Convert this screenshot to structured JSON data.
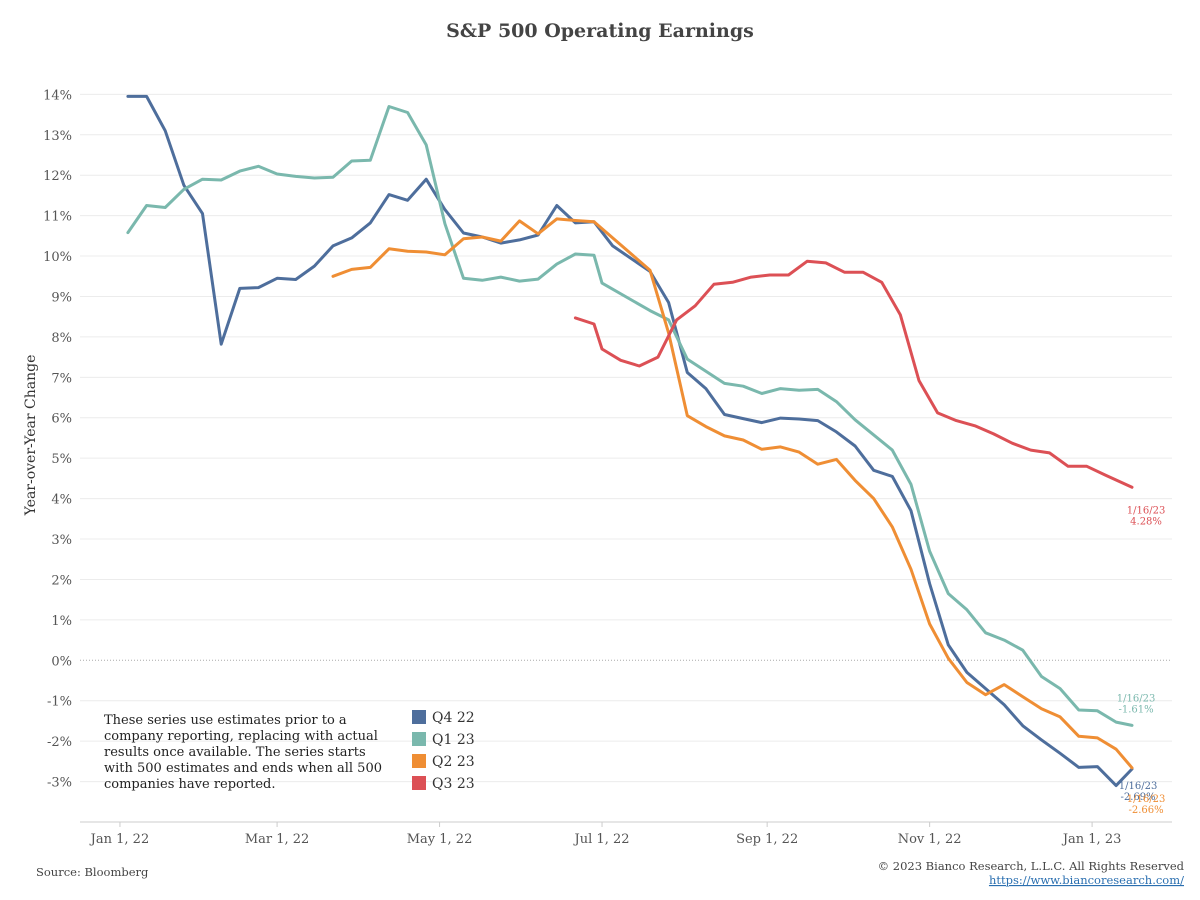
{
  "chart_data": {
    "type": "line",
    "title": "S&P 500 Operating Earnings",
    "ylabel": "Year-over-Year Change",
    "xlabel": "",
    "ylim": [
      -4,
      14.8
    ],
    "xlim": [
      "2021-12-17",
      "2023-01-31"
    ],
    "y_ticks": [
      "-3%",
      "-2%",
      "-1%",
      "0%",
      "1%",
      "2%",
      "3%",
      "4%",
      "5%",
      "6%",
      "7%",
      "8%",
      "9%",
      "10%",
      "11%",
      "12%",
      "13%",
      "14%"
    ],
    "y_tick_values": [
      -3,
      -2,
      -1,
      0,
      1,
      2,
      3,
      4,
      5,
      6,
      7,
      8,
      9,
      10,
      11,
      12,
      13,
      14
    ],
    "x_ticks": [
      {
        "date": "2022-01-01",
        "label": "Jan 1, 22"
      },
      {
        "date": "2022-03-01",
        "label": "Mar 1, 22"
      },
      {
        "date": "2022-05-01",
        "label": "May 1, 22"
      },
      {
        "date": "2022-07-01",
        "label": "Jul 1, 22"
      },
      {
        "date": "2022-09-01",
        "label": "Sep 1, 22"
      },
      {
        "date": "2022-11-01",
        "label": "Nov 1, 22"
      },
      {
        "date": "2023-01-01",
        "label": "Jan 1, 23"
      }
    ],
    "grid": true,
    "legend_position": "bottom-left",
    "series": [
      {
        "name": "Q4 22",
        "color": "#4e6e9c",
        "end_label": [
          "1/16/23",
          "-2.69%"
        ],
        "points": [
          [
            "2022-01-04",
            13.95
          ],
          [
            "2022-01-11",
            13.95
          ],
          [
            "2022-01-18",
            13.1
          ],
          [
            "2022-01-25",
            11.75
          ],
          [
            "2022-02-01",
            11.05
          ],
          [
            "2022-02-08",
            7.82
          ],
          [
            "2022-02-15",
            9.2
          ],
          [
            "2022-02-22",
            9.22
          ],
          [
            "2022-03-01",
            9.45
          ],
          [
            "2022-03-08",
            9.42
          ],
          [
            "2022-03-15",
            9.75
          ],
          [
            "2022-03-22",
            10.25
          ],
          [
            "2022-03-29",
            10.45
          ],
          [
            "2022-04-05",
            10.82
          ],
          [
            "2022-04-12",
            11.52
          ],
          [
            "2022-04-19",
            11.38
          ],
          [
            "2022-04-26",
            11.9
          ],
          [
            "2022-05-03",
            11.15
          ],
          [
            "2022-05-10",
            10.57
          ],
          [
            "2022-05-17",
            10.47
          ],
          [
            "2022-05-24",
            10.32
          ],
          [
            "2022-05-31",
            10.4
          ],
          [
            "2022-06-07",
            10.52
          ],
          [
            "2022-06-14",
            11.25
          ],
          [
            "2022-06-21",
            10.82
          ],
          [
            "2022-06-28",
            10.85
          ],
          [
            "2022-07-05",
            10.25
          ],
          [
            "2022-07-19",
            9.62
          ],
          [
            "2022-07-26",
            8.85
          ],
          [
            "2022-08-02",
            7.12
          ],
          [
            "2022-08-09",
            6.72
          ],
          [
            "2022-08-16",
            6.08
          ],
          [
            "2022-08-23",
            5.98
          ],
          [
            "2022-08-30",
            5.88
          ],
          [
            "2022-09-06",
            5.99
          ],
          [
            "2022-09-13",
            5.97
          ],
          [
            "2022-09-20",
            5.93
          ],
          [
            "2022-09-27",
            5.65
          ],
          [
            "2022-10-04",
            5.3
          ],
          [
            "2022-10-11",
            4.7
          ],
          [
            "2022-10-18",
            4.55
          ],
          [
            "2022-10-25",
            3.7
          ],
          [
            "2022-11-01",
            1.9
          ],
          [
            "2022-11-08",
            0.38
          ],
          [
            "2022-11-15",
            -0.3
          ],
          [
            "2022-11-22",
            -0.7
          ],
          [
            "2022-11-29",
            -1.1
          ],
          [
            "2022-12-06",
            -1.62
          ],
          [
            "2022-12-13",
            -1.97
          ],
          [
            "2022-12-20",
            -2.3
          ],
          [
            "2022-12-27",
            -2.65
          ],
          [
            "2023-01-03",
            -2.63
          ],
          [
            "2023-01-10",
            -3.1
          ],
          [
            "2023-01-16",
            -2.69
          ]
        ]
      },
      {
        "name": "Q1 23",
        "color": "#7ab8ad",
        "end_label": [
          "1/16/23",
          "-1.61%"
        ],
        "points": [
          [
            "2022-01-04",
            10.58
          ],
          [
            "2022-01-11",
            11.25
          ],
          [
            "2022-01-18",
            11.2
          ],
          [
            "2022-01-25",
            11.65
          ],
          [
            "2022-02-01",
            11.9
          ],
          [
            "2022-02-08",
            11.88
          ],
          [
            "2022-02-15",
            12.1
          ],
          [
            "2022-02-22",
            12.22
          ],
          [
            "2022-03-01",
            12.03
          ],
          [
            "2022-03-08",
            11.97
          ],
          [
            "2022-03-15",
            11.93
          ],
          [
            "2022-03-22",
            11.95
          ],
          [
            "2022-03-29",
            12.35
          ],
          [
            "2022-04-05",
            12.37
          ],
          [
            "2022-04-12",
            13.7
          ],
          [
            "2022-04-19",
            13.55
          ],
          [
            "2022-04-26",
            12.75
          ],
          [
            "2022-05-03",
            10.8
          ],
          [
            "2022-05-10",
            9.45
          ],
          [
            "2022-05-17",
            9.4
          ],
          [
            "2022-05-24",
            9.48
          ],
          [
            "2022-05-31",
            9.38
          ],
          [
            "2022-06-07",
            9.43
          ],
          [
            "2022-06-14",
            9.8
          ],
          [
            "2022-06-21",
            10.05
          ],
          [
            "2022-06-28",
            10.02
          ],
          [
            "2022-07-01",
            9.33
          ],
          [
            "2022-07-19",
            8.65
          ],
          [
            "2022-07-26",
            8.42
          ],
          [
            "2022-08-02",
            7.45
          ],
          [
            "2022-08-09",
            7.15
          ],
          [
            "2022-08-16",
            6.85
          ],
          [
            "2022-08-23",
            6.78
          ],
          [
            "2022-08-30",
            6.6
          ],
          [
            "2022-09-06",
            6.72
          ],
          [
            "2022-09-13",
            6.68
          ],
          [
            "2022-09-20",
            6.7
          ],
          [
            "2022-09-27",
            6.4
          ],
          [
            "2022-10-04",
            5.95
          ],
          [
            "2022-10-18",
            5.2
          ],
          [
            "2022-10-25",
            4.35
          ],
          [
            "2022-11-01",
            2.7
          ],
          [
            "2022-11-08",
            1.65
          ],
          [
            "2022-11-15",
            1.25
          ],
          [
            "2022-11-22",
            0.68
          ],
          [
            "2022-11-29",
            0.5
          ],
          [
            "2022-12-06",
            0.25
          ],
          [
            "2022-12-13",
            -0.4
          ],
          [
            "2022-12-20",
            -0.7
          ],
          [
            "2022-12-27",
            -1.23
          ],
          [
            "2023-01-03",
            -1.25
          ],
          [
            "2023-01-10",
            -1.53
          ],
          [
            "2023-01-16",
            -1.61
          ]
        ]
      },
      {
        "name": "Q2 23",
        "color": "#ef8e34",
        "end_label": [
          "1/16/23",
          "-2.66%"
        ],
        "points": [
          [
            "2022-03-22",
            9.5
          ],
          [
            "2022-03-29",
            9.67
          ],
          [
            "2022-04-05",
            9.72
          ],
          [
            "2022-04-12",
            10.18
          ],
          [
            "2022-04-19",
            10.12
          ],
          [
            "2022-04-26",
            10.1
          ],
          [
            "2022-05-03",
            10.03
          ],
          [
            "2022-05-10",
            10.43
          ],
          [
            "2022-05-17",
            10.47
          ],
          [
            "2022-05-24",
            10.37
          ],
          [
            "2022-05-31",
            10.87
          ],
          [
            "2022-06-07",
            10.55
          ],
          [
            "2022-06-14",
            10.92
          ],
          [
            "2022-06-21",
            10.88
          ],
          [
            "2022-06-28",
            10.85
          ],
          [
            "2022-07-19",
            9.65
          ],
          [
            "2022-07-26",
            8.1
          ],
          [
            "2022-08-02",
            6.05
          ],
          [
            "2022-08-09",
            5.78
          ],
          [
            "2022-08-16",
            5.55
          ],
          [
            "2022-08-23",
            5.45
          ],
          [
            "2022-08-30",
            5.22
          ],
          [
            "2022-09-06",
            5.28
          ],
          [
            "2022-09-13",
            5.15
          ],
          [
            "2022-09-20",
            4.85
          ],
          [
            "2022-09-27",
            4.97
          ],
          [
            "2022-10-04",
            4.45
          ],
          [
            "2022-10-11",
            4.0
          ],
          [
            "2022-10-18",
            3.3
          ],
          [
            "2022-10-25",
            2.25
          ],
          [
            "2022-11-01",
            0.9
          ],
          [
            "2022-11-08",
            0.05
          ],
          [
            "2022-11-15",
            -0.55
          ],
          [
            "2022-11-22",
            -0.85
          ],
          [
            "2022-11-29",
            -0.6
          ],
          [
            "2022-12-06",
            -0.9
          ],
          [
            "2022-12-13",
            -1.2
          ],
          [
            "2022-12-20",
            -1.4
          ],
          [
            "2022-12-27",
            -1.88
          ],
          [
            "2023-01-03",
            -1.92
          ],
          [
            "2023-01-10",
            -2.2
          ],
          [
            "2023-01-16",
            -2.66
          ]
        ]
      },
      {
        "name": "Q3 23",
        "color": "#dc5055",
        "end_label": [
          "1/16/23",
          "4.28%"
        ],
        "points": [
          [
            "2022-06-21",
            8.47
          ],
          [
            "2022-06-28",
            8.32
          ],
          [
            "2022-07-01",
            7.7
          ],
          [
            "2022-07-08",
            7.42
          ],
          [
            "2022-07-15",
            7.28
          ],
          [
            "2022-07-22",
            7.5
          ],
          [
            "2022-07-29",
            8.42
          ],
          [
            "2022-08-05",
            8.77
          ],
          [
            "2022-08-12",
            9.3
          ],
          [
            "2022-08-19",
            9.35
          ],
          [
            "2022-08-26",
            9.48
          ],
          [
            "2022-09-02",
            9.53
          ],
          [
            "2022-09-09",
            9.53
          ],
          [
            "2022-09-16",
            9.87
          ],
          [
            "2022-09-23",
            9.83
          ],
          [
            "2022-09-30",
            9.6
          ],
          [
            "2022-10-07",
            9.6
          ],
          [
            "2022-10-14",
            9.35
          ],
          [
            "2022-10-21",
            8.55
          ],
          [
            "2022-10-28",
            6.92
          ],
          [
            "2022-11-04",
            6.12
          ],
          [
            "2022-11-11",
            5.93
          ],
          [
            "2022-11-18",
            5.8
          ],
          [
            "2022-11-25",
            5.6
          ],
          [
            "2022-12-02",
            5.37
          ],
          [
            "2022-12-09",
            5.2
          ],
          [
            "2022-12-16",
            5.13
          ],
          [
            "2022-12-23",
            4.8
          ],
          [
            "2022-12-30",
            4.8
          ],
          [
            "2023-01-06",
            4.58
          ],
          [
            "2023-01-16",
            4.28
          ]
        ]
      }
    ],
    "annotation": [
      "These series use estimates prior to a",
      "company reporting, replacing with actual",
      "results once available. The series starts",
      "with 500 estimates and ends when all 500",
      "companies have reported."
    ]
  },
  "footer": {
    "source": "Source: Bloomberg",
    "copyright": "© 2023 Bianco Research, L.L.C. All Rights Reserved",
    "url": "https://www.biancoresearch.com/"
  }
}
